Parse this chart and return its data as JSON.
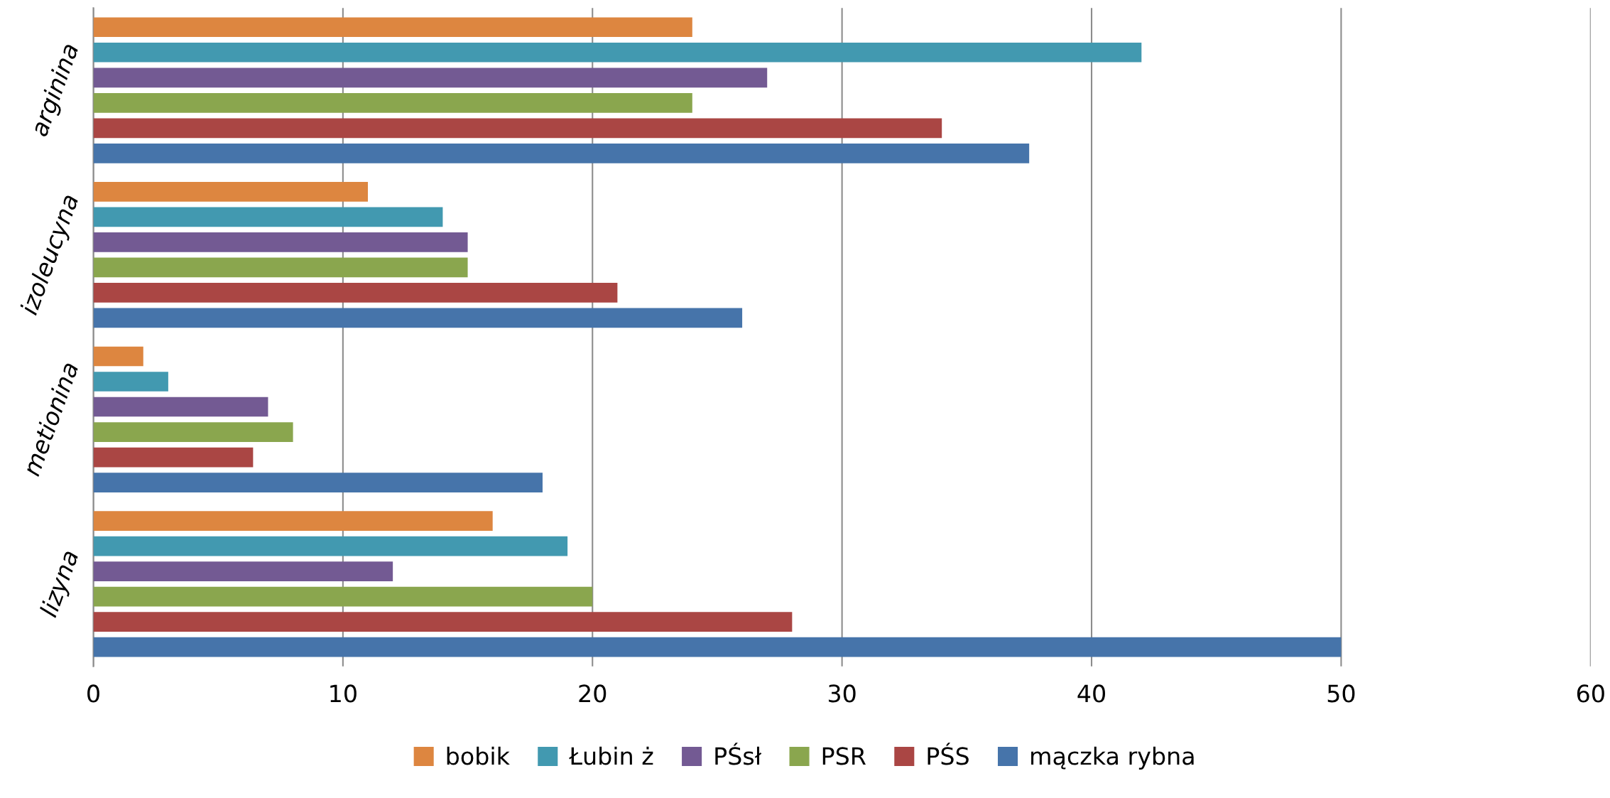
{
  "chart_data": {
    "type": "bar",
    "orientation": "horizontal",
    "categories": [
      "arginina",
      "izoleucyna",
      "metionina",
      "lizyna"
    ],
    "series": [
      {
        "name": "bobik",
        "color": "#dd8640",
        "values": [
          24,
          11,
          2,
          16
        ]
      },
      {
        "name": "Łubin ż",
        "color": "#4299b0",
        "values": [
          42,
          14,
          3,
          19
        ]
      },
      {
        "name": "PŚsł",
        "color": "#735a93",
        "values": [
          27,
          15,
          7,
          12
        ]
      },
      {
        "name": "PSR",
        "color": "#8aa64e",
        "values": [
          24,
          15,
          8,
          20
        ]
      },
      {
        "name": "PŚS",
        "color": "#aa4644",
        "values": [
          34,
          21,
          6.4,
          28
        ]
      },
      {
        "name": "mączka rybna",
        "color": "#4674aa",
        "values": [
          37.5,
          26,
          18,
          50
        ]
      }
    ],
    "xlim": [
      0,
      60
    ],
    "xticks": [
      0,
      10,
      20,
      30,
      40,
      50,
      60
    ],
    "grid": "x",
    "legend": "bottom"
  }
}
